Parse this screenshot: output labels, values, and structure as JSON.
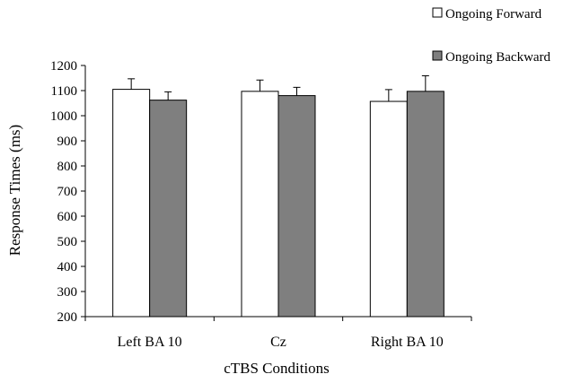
{
  "chart_data": {
    "type": "bar",
    "title": "",
    "xlabel": "cTBS Conditions",
    "ylabel": "Response Times (ms)",
    "ylim": [
      200,
      1200
    ],
    "yticks": [
      200,
      300,
      400,
      500,
      600,
      700,
      800,
      900,
      1000,
      1100,
      1200
    ],
    "categories": [
      "Left BA 10",
      "Cz",
      "Right BA 10"
    ],
    "series": [
      {
        "name": "Ongoing Forward",
        "values": [
          1105,
          1097,
          1057
        ],
        "errors": [
          42,
          45,
          47
        ],
        "color": "#ffffff"
      },
      {
        "name": "Ongoing Backward",
        "values": [
          1062,
          1080,
          1097
        ],
        "errors": [
          33,
          33,
          62
        ],
        "color": "#7f7f7f"
      }
    ],
    "legend": "top-right",
    "grid": false,
    "error_bars": true
  }
}
